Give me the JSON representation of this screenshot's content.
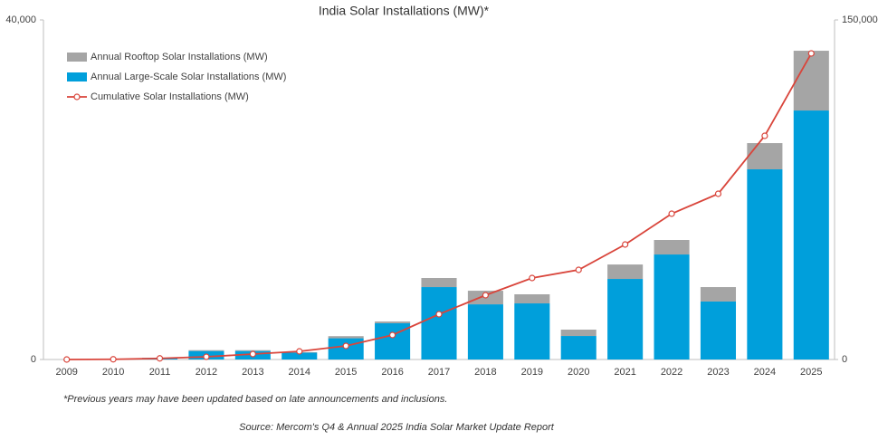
{
  "chart_data": {
    "type": "bar",
    "stacked": true,
    "title": "India Solar Installations (MW)*",
    "footnote": "*Previous years may have been updated based on late announcements and inclusions.",
    "source": "Source: Mercom's Q4 & Annual 2025 India Solar Market Update Report",
    "categories": [
      "2009",
      "2010",
      "2011",
      "2012",
      "2013",
      "2014",
      "2015",
      "2016",
      "2017",
      "2018",
      "2019",
      "2020",
      "2021",
      "2022",
      "2023",
      "2024",
      "2025"
    ],
    "series": [
      {
        "name": "Annual Rooftop Solar Installations (MW)",
        "type": "bar",
        "color": "#a5a5a5",
        "values": [
          0,
          0,
          10,
          100,
          100,
          60,
          250,
          210,
          1070,
          1600,
          1070,
          750,
          1700,
          1710,
          1700,
          3090,
          7040
        ]
      },
      {
        "name": "Annual Large-Scale Solar Installations (MW)",
        "type": "bar",
        "color": "#009fdb",
        "values": [
          0,
          0,
          190,
          1000,
          1000,
          800,
          2500,
          4270,
          8530,
          6500,
          6610,
          2770,
          9490,
          12370,
          6830,
          22400,
          29330
        ]
      },
      {
        "name": "Cumulative Solar Installations (MW)",
        "type": "line",
        "axis": "y2",
        "color": "#d9453b",
        "values": [
          0,
          100,
          500,
          1200,
          2400,
          3600,
          6000,
          10800,
          20000,
          28400,
          36000,
          39600,
          50800,
          64400,
          73200,
          98800,
          135200
        ]
      }
    ],
    "ylim": [
      0,
      40000
    ],
    "yticks": [
      0,
      {
        "value": 40000,
        "label": "40,000"
      }
    ],
    "y2lim": [
      0,
      150000
    ],
    "y2ticks": [
      0,
      {
        "value": 150000,
        "label": "150,000"
      }
    ],
    "legend": "top-left"
  }
}
